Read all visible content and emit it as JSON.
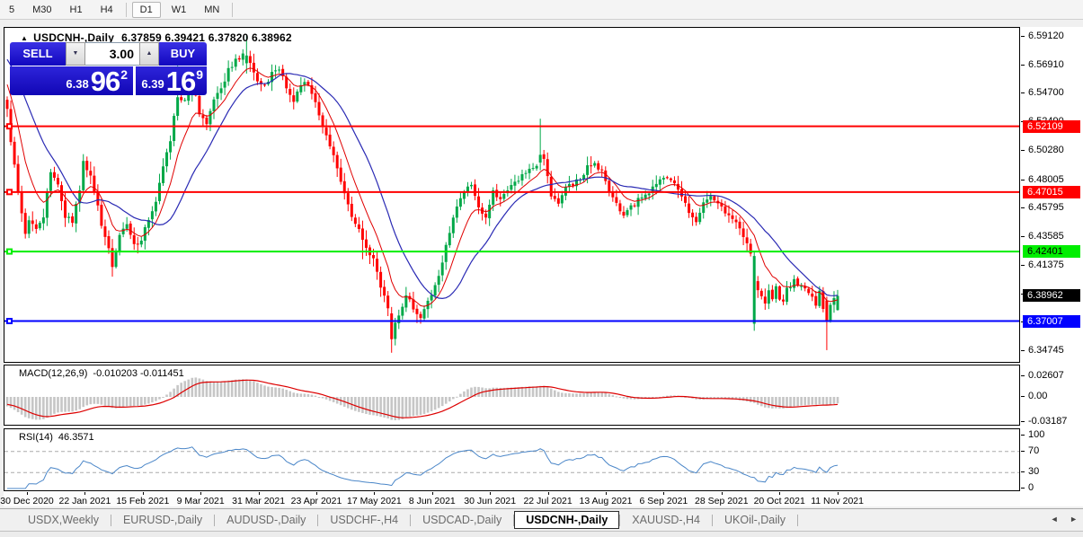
{
  "toolbar": {
    "timeframes": [
      {
        "label": "5",
        "active": false,
        "sep_after": false
      },
      {
        "label": "M30",
        "active": false,
        "sep_after": false
      },
      {
        "label": "H1",
        "active": false,
        "sep_after": false
      },
      {
        "label": "H4",
        "active": false,
        "sep_after": true
      },
      {
        "label": "D1",
        "active": true,
        "sep_after": false
      },
      {
        "label": "W1",
        "active": false,
        "sep_after": false
      },
      {
        "label": "MN",
        "active": false,
        "sep_after": true
      }
    ]
  },
  "icons": {
    "header_triangle": "▲",
    "spin_down": "▼",
    "spin_up": "▲",
    "tab_left": "◄",
    "tab_right": "►"
  },
  "chart": {
    "symbol_period": "USDCNH-,Daily",
    "ohlc_text": "6.37859 6.39421 6.37820 6.38962"
  },
  "trade_panel": {
    "sell_label": "SELL",
    "buy_label": "BUY",
    "volume": "3.00",
    "sell_small": "6.38",
    "sell_big": "96",
    "sell_sup": "2",
    "buy_small": "6.39",
    "buy_big": "16",
    "buy_sup": "9"
  },
  "price_axis": {
    "ticks": [
      {
        "p": 6.5912,
        "label": "6.59120"
      },
      {
        "p": 6.5691,
        "label": "6.56910"
      },
      {
        "p": 6.547,
        "label": "6.54700"
      },
      {
        "p": 6.5249,
        "label": "6.52490"
      },
      {
        "p": 6.5028,
        "label": "6.50280"
      },
      {
        "p": 6.48005,
        "label": "6.48005"
      },
      {
        "p": 6.45795,
        "label": "6.45795"
      },
      {
        "p": 6.43585,
        "label": "6.43585"
      },
      {
        "p": 6.41375,
        "label": "6.41375"
      },
      {
        "p": 6.39165,
        "label": "6.39165"
      },
      {
        "p": 6.36955,
        "label": "6.36955"
      },
      {
        "p": 6.34745,
        "label": "6.34745"
      }
    ]
  },
  "levels": [
    {
      "price": 6.52109,
      "label": "6.52109",
      "color": "#FF0000",
      "text": "#FFFFFF"
    },
    {
      "price": 6.47015,
      "label": "6.47015",
      "color": "#FF0000",
      "text": "#FFFFFF"
    },
    {
      "price": 6.42401,
      "label": "6.42401",
      "color": "#00EE00",
      "text": "#000000"
    },
    {
      "price": 6.37007,
      "label": "6.37007",
      "color": "#0000FF",
      "text": "#FFFFFF"
    }
  ],
  "current_price": {
    "price": 6.38962,
    "label": "6.38962",
    "bg": "#000000",
    "text": "#FFFFFF"
  },
  "macd": {
    "title": "MACD(12,26,9)",
    "values": "-0.010203 -0.011451",
    "ticks": [
      {
        "v": 0.02607,
        "label": "0.02607"
      },
      {
        "v": 0,
        "label": "0.00"
      },
      {
        "v": -0.03187,
        "label": "-0.03187"
      }
    ]
  },
  "rsi": {
    "title": "RSI(14)",
    "value": "46.3571",
    "ticks": [
      {
        "v": 100,
        "label": "100"
      },
      {
        "v": 70,
        "label": "70"
      },
      {
        "v": 30,
        "label": "30"
      },
      {
        "v": 0,
        "label": "0"
      }
    ],
    "level_lines": [
      70,
      30
    ]
  },
  "date_axis": {
    "labels": [
      "30 Dec 2020",
      "22 Jan 2021",
      "15 Feb 2021",
      "9 Mar 2021",
      "31 Mar 2021",
      "23 Apr 2021",
      "17 May 2021",
      "8 Jun 2021",
      "30 Jun 2021",
      "22 Jul 2021",
      "13 Aug 2021",
      "6 Sep 2021",
      "28 Sep 2021",
      "20 Oct 2021",
      "11 Nov 2021"
    ]
  },
  "tabs": {
    "items": [
      {
        "label": "USDX,Weekly",
        "active": false
      },
      {
        "label": "EURUSD-,Daily",
        "active": false
      },
      {
        "label": "AUDUSD-,Daily",
        "active": false
      },
      {
        "label": "USDCHF-,H4",
        "active": false
      },
      {
        "label": "USDCAD-,Daily",
        "active": false
      },
      {
        "label": "USDCNH-,Daily",
        "active": true
      },
      {
        "label": "XAUUSD-,H4",
        "active": false
      },
      {
        "label": "UKOil-,Daily",
        "active": false
      }
    ]
  },
  "colors": {
    "bull": "#00A848",
    "bear": "#FF0000",
    "ma_fast": "#E00000",
    "ma_slow": "#2A2AB4",
    "level_red": "#FF0000",
    "level_green": "#00EE00",
    "level_blue": "#0000FF",
    "macd_bar": "#C6C6C6",
    "macd_signal": "#DD0000",
    "rsi_line": "#4A86C8",
    "panel_blue": "#1A0FCF"
  },
  "chart_data": {
    "type": "candlestick",
    "symbol": "USDCNH-,Daily",
    "num_candles": 230,
    "price_top": 6.59747,
    "price_bottom": 6.33843,
    "anchors": [
      [
        -30,
        6.615
      ],
      [
        -18,
        6.598
      ],
      [
        -8,
        6.572
      ],
      [
        -2,
        6.548
      ],
      [
        0,
        6.535
      ],
      [
        1,
        6.508
      ],
      [
        3,
        6.472
      ],
      [
        5,
        6.438
      ],
      [
        6,
        6.448
      ],
      [
        8,
        6.44
      ],
      [
        10,
        6.452
      ],
      [
        12,
        6.486
      ],
      [
        14,
        6.478
      ],
      [
        16,
        6.452
      ],
      [
        18,
        6.448
      ],
      [
        20,
        6.472
      ],
      [
        21,
        6.494
      ],
      [
        23,
        6.482
      ],
      [
        25,
        6.458
      ],
      [
        26,
        6.444
      ],
      [
        28,
        6.426
      ],
      [
        29,
        6.414
      ],
      [
        31,
        6.436
      ],
      [
        33,
        6.444
      ],
      [
        35,
        6.428
      ],
      [
        37,
        6.434
      ],
      [
        39,
        6.45
      ],
      [
        41,
        6.462
      ],
      [
        43,
        6.49
      ],
      [
        45,
        6.51
      ],
      [
        47,
        6.545
      ],
      [
        49,
        6.54
      ],
      [
        51,
        6.556
      ],
      [
        53,
        6.53
      ],
      [
        55,
        6.524
      ],
      [
        57,
        6.542
      ],
      [
        59,
        6.55
      ],
      [
        61,
        6.565
      ],
      [
        63,
        6.572
      ],
      [
        65,
        6.576
      ],
      [
        67,
        6.57
      ],
      [
        69,
        6.556
      ],
      [
        71,
        6.552
      ],
      [
        73,
        6.563
      ],
      [
        75,
        6.567
      ],
      [
        77,
        6.55
      ],
      [
        79,
        6.542
      ],
      [
        81,
        6.553
      ],
      [
        83,
        6.555
      ],
      [
        85,
        6.54
      ],
      [
        87,
        6.52
      ],
      [
        89,
        6.505
      ],
      [
        91,
        6.49
      ],
      [
        93,
        6.468
      ],
      [
        95,
        6.45
      ],
      [
        97,
        6.44
      ],
      [
        99,
        6.428
      ],
      [
        101,
        6.418
      ],
      [
        103,
        6.398
      ],
      [
        105,
        6.378
      ],
      [
        106,
        6.36
      ],
      [
        108,
        6.375
      ],
      [
        110,
        6.39
      ],
      [
        112,
        6.38
      ],
      [
        114,
        6.372
      ],
      [
        116,
        6.385
      ],
      [
        118,
        6.398
      ],
      [
        120,
        6.415
      ],
      [
        122,
        6.44
      ],
      [
        124,
        6.458
      ],
      [
        126,
        6.47
      ],
      [
        128,
        6.477
      ],
      [
        130,
        6.458
      ],
      [
        132,
        6.452
      ],
      [
        134,
        6.47
      ],
      [
        136,
        6.466
      ],
      [
        138,
        6.473
      ],
      [
        140,
        6.478
      ],
      [
        142,
        6.482
      ],
      [
        144,
        6.487
      ],
      [
        146,
        6.49
      ],
      [
        148,
        6.496
      ],
      [
        150,
        6.468
      ],
      [
        152,
        6.46
      ],
      [
        154,
        6.472
      ],
      [
        156,
        6.477
      ],
      [
        158,
        6.48
      ],
      [
        160,
        6.49
      ],
      [
        162,
        6.493
      ],
      [
        164,
        6.486
      ],
      [
        166,
        6.47
      ],
      [
        168,
        6.46
      ],
      [
        170,
        6.452
      ],
      [
        172,
        6.458
      ],
      [
        174,
        6.464
      ],
      [
        176,
        6.468
      ],
      [
        178,
        6.473
      ],
      [
        180,
        6.478
      ],
      [
        182,
        6.482
      ],
      [
        184,
        6.476
      ],
      [
        186,
        6.468
      ],
      [
        188,
        6.452
      ],
      [
        190,
        6.448
      ],
      [
        192,
        6.462
      ],
      [
        194,
        6.466
      ],
      [
        196,
        6.46
      ],
      [
        198,
        6.455
      ],
      [
        200,
        6.45
      ],
      [
        202,
        6.44
      ],
      [
        204,
        6.43
      ],
      [
        205,
        6.421
      ],
      [
        206,
        6.4205
      ],
      [
        207,
        6.398
      ],
      [
        208,
        6.388
      ],
      [
        209,
        6.384
      ],
      [
        210,
        6.392
      ],
      [
        211,
        6.388
      ],
      [
        212,
        6.398
      ],
      [
        213,
        6.388
      ],
      [
        214,
        6.384
      ],
      [
        215,
        6.394
      ],
      [
        216,
        6.398
      ],
      [
        217,
        6.403
      ],
      [
        218,
        6.398
      ],
      [
        219,
        6.396
      ],
      [
        220,
        6.394
      ],
      [
        221,
        6.391
      ],
      [
        222,
        6.388
      ],
      [
        223,
        6.382
      ],
      [
        224,
        6.392
      ],
      [
        225,
        6.378
      ],
      [
        226,
        6.37
      ],
      [
        227,
        6.383
      ],
      [
        228,
        6.389
      ],
      [
        229,
        6.3896
      ]
    ],
    "spikes": [
      {
        "i": 29,
        "low": 6.4045
      },
      {
        "i": 47,
        "high": 6.568
      },
      {
        "i": 98,
        "low": 6.418
      }
    ],
    "overrides": [
      {
        "i": 66,
        "o": 6.57,
        "h": 6.5915,
        "l": 6.562,
        "c": 6.576
      },
      {
        "i": 106,
        "o": 6.376,
        "h": 6.381,
        "l": 6.3455,
        "c": 6.356
      },
      {
        "i": 147,
        "o": 6.493,
        "h": 6.527,
        "l": 6.487,
        "c": 6.499
      },
      {
        "i": 206,
        "o": 6.368,
        "h": 6.424,
        "l": 6.3625,
        "c": 6.4205
      },
      {
        "i": 207,
        "o": 6.401,
        "h": 6.405,
        "l": 6.388,
        "c": 6.394
      },
      {
        "i": 226,
        "o": 6.386,
        "h": 6.389,
        "l": 6.3475,
        "c": 6.37
      },
      {
        "i": 229,
        "o": 6.37859,
        "h": 6.39421,
        "l": 6.3782,
        "c": 6.38962
      }
    ],
    "ma_fast_period": 9,
    "ma_slow_period": 20,
    "macd_params": [
      12,
      26,
      9
    ],
    "rsi_period": 14
  }
}
